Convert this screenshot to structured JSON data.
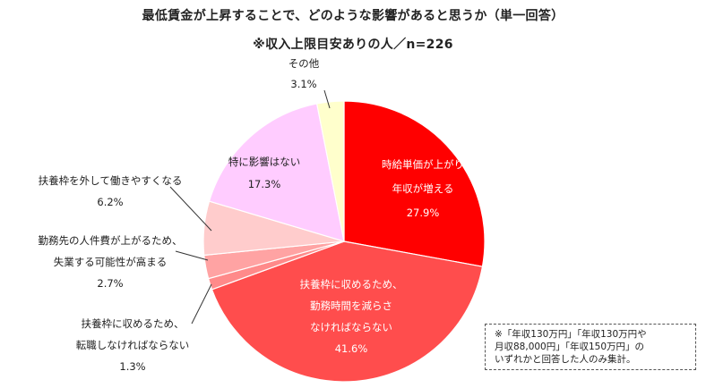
{
  "title": "最低賃金が上昇することで、どのような影響があると思うか（単一回答）",
  "subtitle": "※収入上限目安ありの人／n=226",
  "chart_data": {
    "type": "pie",
    "title": "最低賃金が上昇することで、どのような影響があると思うか（単一回答）",
    "subtitle": "※収入上限目安ありの人／n=226",
    "slices": [
      {
        "lines": [
          "時給単価が上がり",
          "年収が増える"
        ],
        "value": 27.9,
        "value_label": "27.9%",
        "color": "#ff0000"
      },
      {
        "lines": [
          "扶養枠に収めるため、",
          "勤務時間を減らさ",
          "なければならない"
        ],
        "value": 41.6,
        "value_label": "41.6%",
        "color": "#ff4d4d"
      },
      {
        "lines": [
          "扶養枠に収めるため、",
          "転職しなければならない"
        ],
        "value": 1.3,
        "value_label": "1.3%",
        "color": "#ff8a8a"
      },
      {
        "lines": [
          "勤務先の人件費が上がるため、",
          "失業する可能性が高まる"
        ],
        "value": 2.7,
        "value_label": "2.7%",
        "color": "#ffa3a3"
      },
      {
        "lines": [
          "扶養枠を外して働きやすくなる"
        ],
        "value": 6.2,
        "value_label": "6.2%",
        "color": "#ffcccc"
      },
      {
        "lines": [
          "特に影響はない"
        ],
        "value": 17.3,
        "value_label": "17.3%",
        "color": "#ffccff"
      },
      {
        "lines": [
          "その他"
        ],
        "value": 3.1,
        "value_label": "3.1%",
        "color": "#ffffcc"
      }
    ]
  },
  "note": {
    "lines": [
      "※「年収130万円」「年収130万円や",
      "月収88,000円」「年収150万円」の",
      "いずれかと回答した人のみ集計。"
    ]
  }
}
